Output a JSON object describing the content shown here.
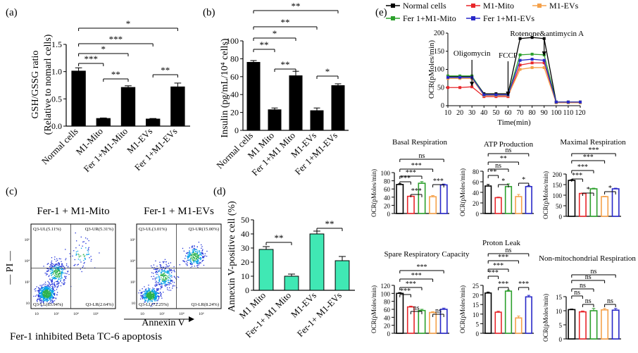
{
  "figure": {
    "caption_c": "Fer-1 inhibited Beta TC-6 apoptosis"
  },
  "chart_data": [
    {
      "id": "a",
      "panel_label": "(a)",
      "type": "bar",
      "ylabel": "GSH/GSSG ratio",
      "ylabel2": "(Relative to nomarl cells)",
      "ylim": [
        0,
        1.5
      ],
      "yticks": [
        "0.0",
        "0.5",
        "1.0",
        "1.5"
      ],
      "categories": [
        "Normal cells",
        "M1-Mito",
        "Fer 1+M1-Mito",
        "M1-EVs",
        "Fer 1+M1-EVs"
      ],
      "values": [
        1.01,
        0.14,
        0.71,
        0.13,
        0.72
      ],
      "errors": [
        0.06,
        0.01,
        0.03,
        0.01,
        0.07
      ],
      "bar_color": "#000000",
      "significance": [
        {
          "from": 0,
          "to": 4,
          "label": "*"
        },
        {
          "from": 0,
          "to": 3,
          "label": "***"
        },
        {
          "from": 0,
          "to": 2,
          "label": "*"
        },
        {
          "from": 0,
          "to": 1,
          "label": "***"
        },
        {
          "from": 1,
          "to": 2,
          "label": "**"
        },
        {
          "from": 3,
          "to": 4,
          "label": "**"
        }
      ]
    },
    {
      "id": "b",
      "panel_label": "(b)",
      "type": "bar",
      "ylabel": "Insulin (pg/mL/10⁴ cells)",
      "ylim": [
        0,
        100
      ],
      "yticks": [
        "0",
        "20",
        "40",
        "60",
        "80",
        "100"
      ],
      "categories": [
        "Normal cells",
        "M1 Mito",
        "Fer 1+M1 Mito",
        "M1-EVs",
        "Fer 1+M1-EVs"
      ],
      "values": [
        76,
        23,
        61,
        22,
        50
      ],
      "errors": [
        2,
        2,
        5,
        3,
        2
      ],
      "bar_color": "#000000",
      "significance": [
        {
          "from": 0,
          "to": 4,
          "label": "**"
        },
        {
          "from": 0,
          "to": 3,
          "label": "**"
        },
        {
          "from": 0,
          "to": 2,
          "label": "*"
        },
        {
          "from": 0,
          "to": 1,
          "label": "**"
        },
        {
          "from": 1,
          "to": 2,
          "label": "**"
        },
        {
          "from": 3,
          "to": 4,
          "label": "*"
        }
      ]
    },
    {
      "id": "c",
      "panel_label": "(c)",
      "type": "scatter",
      "plots": [
        {
          "title": "Fer-1 + M1-Mito",
          "quadrants": {
            "UL": "Q3-UL(5.11%)",
            "UR": "Q3-UR(5.31%)",
            "LL": "Q3-LL(83.94%)",
            "LR": "Q3-LR(2.64%)"
          }
        },
        {
          "title": "Fer-1 + M1-EVs",
          "quadrants": {
            "UL": "Q3-UL(3.01%)",
            "UR": "Q3-UR(15.00%)",
            "LL": "Q3-LL(72.25%)",
            "LR": "Q3-LR(8.24%)"
          }
        }
      ],
      "ylabel": "— PI —",
      "xlabel": "Annexin V"
    },
    {
      "id": "d",
      "panel_label": "(d)",
      "type": "bar",
      "ylabel": "Annexin V-positive cell (%)",
      "ylim": [
        0,
        50
      ],
      "yticks": [
        "0",
        "10",
        "20",
        "30",
        "40",
        "50"
      ],
      "categories": [
        "M1 Mito",
        "Fer-1+ M1 Mito",
        "M1-EVs",
        "Fer-1+ M1-EVs"
      ],
      "values": [
        29,
        10,
        40,
        21
      ],
      "errors": [
        2,
        1.5,
        2,
        3
      ],
      "bar_color": "#40e8b4",
      "significance": [
        {
          "from": 0,
          "to": 1,
          "label": "**"
        },
        {
          "from": 2,
          "to": 3,
          "label": "**"
        }
      ]
    },
    {
      "id": "e",
      "panel_label": "(e)",
      "type": "line",
      "xlabel": "Time(min)",
      "ylabel": "OCR(pMoles/min)",
      "ylim": [
        0,
        200
      ],
      "yticks": [
        "0",
        "50",
        "100",
        "150",
        "200"
      ],
      "x": [
        10,
        20,
        30,
        40,
        50,
        60,
        70,
        80,
        90,
        100,
        110,
        120
      ],
      "xticks": [
        "10",
        "20",
        "30",
        "40",
        "50",
        "60",
        "70",
        "80",
        "90",
        "100",
        "110",
        "120"
      ],
      "annotations": [
        "Oligomycin",
        "FCCP",
        "Rotenone&antimycin A"
      ],
      "series": [
        {
          "name": "Normal cells",
          "color": "#000000",
          "values": [
            80,
            80,
            80,
            33,
            33,
            33,
            185,
            188,
            185,
            10,
            10,
            10
          ]
        },
        {
          "name": "M1-Mito",
          "color": "#e8262a",
          "values": [
            50,
            50,
            52,
            25,
            25,
            25,
            112,
            118,
            118,
            10,
            10,
            10
          ]
        },
        {
          "name": "M1-EVs",
          "color": "#f5a14a",
          "values": [
            75,
            75,
            75,
            28,
            28,
            28,
            100,
            105,
            105,
            8,
            8,
            8
          ]
        },
        {
          "name": "Fer 1+M1-Mito",
          "color": "#2ca02c",
          "values": [
            82,
            82,
            82,
            30,
            30,
            30,
            140,
            142,
            140,
            10,
            10,
            10
          ]
        },
        {
          "name": "Fer 1+M1-EVs",
          "color": "#2828c8",
          "values": [
            78,
            78,
            78,
            30,
            30,
            30,
            125,
            128,
            125,
            10,
            10,
            10
          ]
        }
      ],
      "subplots": [
        {
          "title": "Basal Respiration",
          "ylabel": "OCR(pMoles/min)",
          "ylim": [
            0,
            100
          ],
          "yticks": [
            "0",
            "20",
            "40",
            "60",
            "80",
            "100"
          ],
          "values": [
            71,
            42,
            74,
            41,
            70
          ],
          "errors": [
            2,
            1,
            4,
            3,
            2
          ],
          "brackets": [
            {
              "from": 0,
              "to": 4,
              "label": "ns"
            },
            {
              "from": 0,
              "to": 3,
              "label": "***"
            },
            {
              "from": 0,
              "to": 2,
              "label": "***"
            },
            {
              "from": 0,
              "to": 1,
              "label": "***"
            },
            {
              "from": 1,
              "to": 2,
              "label": "***"
            },
            {
              "from": 3,
              "to": 4,
              "label": "***"
            }
          ]
        },
        {
          "title": "ATP Production",
          "ylabel": "OCR(pMoles/min)",
          "ylim": [
            0,
            80
          ],
          "yticks": [
            "0",
            "20",
            "40",
            "60",
            "80"
          ],
          "values": [
            52,
            30,
            51,
            32,
            51
          ],
          "errors": [
            3,
            1,
            5,
            4,
            2
          ],
          "brackets": [
            {
              "from": 0,
              "to": 4,
              "label": "ns"
            },
            {
              "from": 0,
              "to": 3,
              "label": "**"
            },
            {
              "from": 0,
              "to": 2,
              "label": "ns"
            },
            {
              "from": 0,
              "to": 1,
              "label": "**"
            },
            {
              "from": 1,
              "to": 2,
              "label": "*"
            },
            {
              "from": 3,
              "to": 4,
              "label": "*"
            }
          ]
        },
        {
          "title": "Maximal Respiration",
          "ylabel": "OCR(pMoles/min)",
          "ylim": [
            0,
            200
          ],
          "yticks": [
            "0",
            "50",
            "100",
            "150",
            "200"
          ],
          "values": [
            170,
            108,
            130,
            93,
            130
          ],
          "errors": [
            3,
            2,
            3,
            2,
            3
          ],
          "brackets": [
            {
              "from": 0,
              "to": 4,
              "label": "***"
            },
            {
              "from": 0,
              "to": 3,
              "label": "***"
            },
            {
              "from": 0,
              "to": 2,
              "label": "***"
            },
            {
              "from": 0,
              "to": 1,
              "label": "***"
            },
            {
              "from": 1,
              "to": 2,
              "label": "*"
            },
            {
              "from": 3,
              "to": 4,
              "label": "*"
            }
          ]
        },
        {
          "title": "Spare Respiratory Capacity",
          "ylabel": "OCR(pMoles/min)",
          "ylim": [
            0,
            120
          ],
          "yticks": [
            "0",
            "20",
            "40",
            "60",
            "80",
            "100",
            "120"
          ],
          "values": [
            100,
            66,
            57,
            52,
            60
          ],
          "errors": [
            2,
            2,
            3,
            2,
            3
          ],
          "brackets": [
            {
              "from": 0,
              "to": 4,
              "label": "***"
            },
            {
              "from": 0,
              "to": 3,
              "label": "***"
            },
            {
              "from": 0,
              "to": 2,
              "label": "***"
            },
            {
              "from": 0,
              "to": 1,
              "label": "***"
            },
            {
              "from": 1,
              "to": 2,
              "label": "ns"
            },
            {
              "from": 3,
              "to": 4,
              "label": "ns"
            }
          ]
        },
        {
          "title": "Proton Leak",
          "ylabel": "OCR(pMoles/min)",
          "ylim": [
            0,
            25
          ],
          "yticks": [
            "0",
            "5",
            "10",
            "15",
            "20",
            "25"
          ],
          "values": [
            21,
            11,
            22,
            8,
            19
          ],
          "errors": [
            0.5,
            0.5,
            0.5,
            1,
            0.8
          ],
          "brackets": [
            {
              "from": 0,
              "to": 4,
              "label": "ns"
            },
            {
              "from": 0,
              "to": 3,
              "label": "***"
            },
            {
              "from": 0,
              "to": 2,
              "label": "***"
            },
            {
              "from": 0,
              "to": 1,
              "label": "***"
            },
            {
              "from": 1,
              "to": 2,
              "label": "***"
            },
            {
              "from": 3,
              "to": 4,
              "label": "***"
            }
          ]
        },
        {
          "title": "Non-mitochondrial Respiration",
          "ylabel": "OCR(pMoles/min)",
          "ylim": [
            0,
            15
          ],
          "yticks": [
            "0",
            "5",
            "10",
            "15"
          ],
          "values": [
            10.4,
            9.6,
            10,
            10.3,
            10.2
          ],
          "errors": [
            0.2,
            0.3,
            0.8,
            0.5,
            0.6
          ],
          "brackets": [
            {
              "from": 0,
              "to": 4,
              "label": "ns"
            },
            {
              "from": 0,
              "to": 3,
              "label": "ns"
            },
            {
              "from": 0,
              "to": 2,
              "label": "ns"
            },
            {
              "from": 0,
              "to": 1,
              "label": "ns"
            },
            {
              "from": 1,
              "to": 2,
              "label": "ns"
            },
            {
              "from": 3,
              "to": 4,
              "label": "ns"
            }
          ]
        }
      ]
    }
  ]
}
